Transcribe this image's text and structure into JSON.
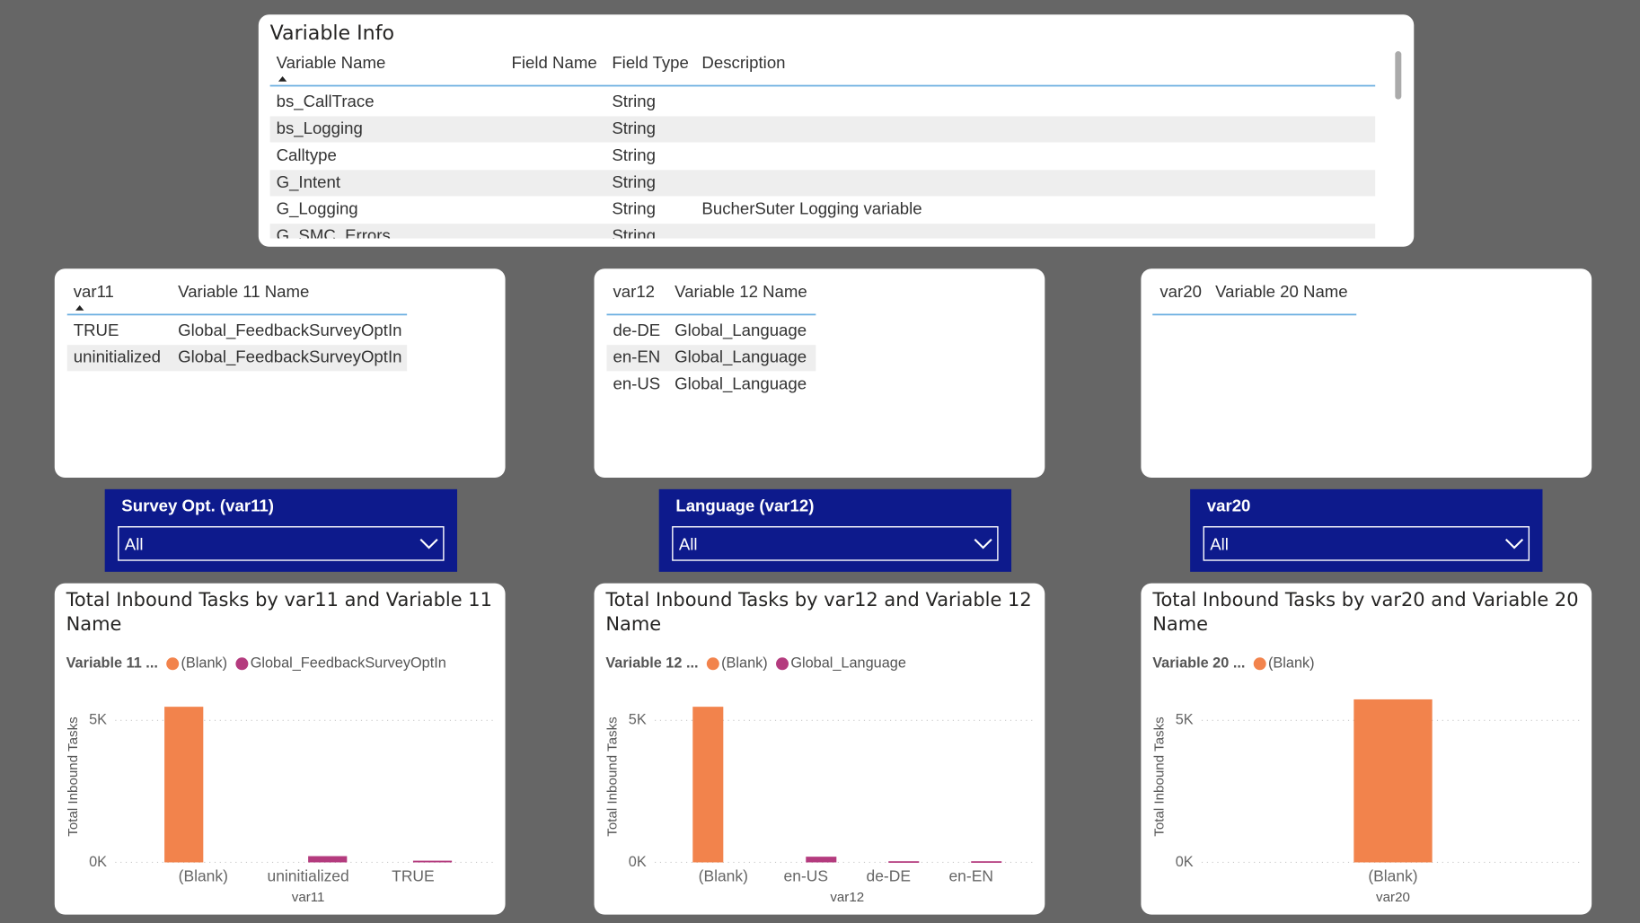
{
  "variable_info": {
    "title": "Variable Info",
    "columns": [
      "Variable Name",
      "Field Name",
      "Field Type",
      "Description"
    ],
    "rows": [
      [
        "bs_CallTrace",
        null,
        "String",
        null
      ],
      [
        "bs_Logging",
        null,
        "String",
        null
      ],
      [
        "Calltype",
        null,
        "String",
        null
      ],
      [
        "G_Intent",
        null,
        "String",
        null
      ],
      [
        "G_Logging",
        null,
        "String",
        "BucherSuter Logging variable"
      ],
      [
        "G_SMC_Errors",
        null,
        "String",
        null
      ]
    ]
  },
  "tables": [
    {
      "columns": [
        "var11",
        "Variable 11 Name"
      ],
      "rows": [
        [
          "TRUE",
          "Global_FeedbackSurveyOptIn"
        ],
        [
          "uninitialized",
          "Global_FeedbackSurveyOptIn"
        ]
      ]
    },
    {
      "columns": [
        "var12",
        "Variable 12 Name"
      ],
      "rows": [
        [
          "de-DE",
          "Global_Language"
        ],
        [
          "en-EN",
          "Global_Language"
        ],
        [
          "en-US",
          "Global_Language"
        ]
      ]
    },
    {
      "columns": [
        "var20",
        "Variable 20 Name"
      ],
      "rows": []
    }
  ],
  "slicers": [
    {
      "title": "Survey Opt. (var11)",
      "value": "All"
    },
    {
      "title": "Language (var12)",
      "value": "All"
    },
    {
      "title": "var20",
      "value": "All"
    }
  ],
  "chart_data": [
    {
      "type": "bar",
      "title": "Total Inbound Tasks by var11 and Variable 11 Name",
      "legend_title": "Variable 11 ...",
      "x_label": "var11",
      "y_label": "Total Inbound Tasks",
      "categories": [
        "(Blank)",
        "uninitialized",
        "TRUE"
      ],
      "series": [
        {
          "name": "(Blank)",
          "color": "#f2834c",
          "values": [
            5480,
            null,
            null
          ]
        },
        {
          "name": "Global_FeedbackSurveyOptIn",
          "color": "#b43b7e",
          "values": [
            null,
            220,
            60
          ]
        }
      ],
      "ylim": [
        0,
        6000
      ],
      "yticks": [
        {
          "value": 0,
          "label": "0K"
        },
        {
          "value": 5000,
          "label": "5K"
        }
      ],
      "grid": true
    },
    {
      "type": "bar",
      "title": "Total Inbound Tasks by var12 and Variable 12 Name",
      "legend_title": "Variable 12 ...",
      "x_label": "var12",
      "y_label": "Total Inbound Tasks",
      "categories": [
        "(Blank)",
        "en-US",
        "de-DE",
        "en-EN"
      ],
      "series": [
        {
          "name": "(Blank)",
          "color": "#f2834c",
          "values": [
            5480,
            null,
            null,
            null
          ]
        },
        {
          "name": "Global_Language",
          "color": "#b43b7e",
          "values": [
            null,
            200,
            40,
            40
          ]
        }
      ],
      "ylim": [
        0,
        6000
      ],
      "yticks": [
        {
          "value": 0,
          "label": "0K"
        },
        {
          "value": 5000,
          "label": "5K"
        }
      ],
      "grid": true
    },
    {
      "type": "bar",
      "title": "Total Inbound Tasks by var20 and Variable 20 Name",
      "legend_title": "Variable 20 ...",
      "x_label": "var20",
      "y_label": "Total Inbound Tasks",
      "categories": [
        "(Blank)"
      ],
      "series": [
        {
          "name": "(Blank)",
          "color": "#f2834c",
          "values": [
            5740
          ]
        }
      ],
      "ylim": [
        0,
        6000
      ],
      "yticks": [
        {
          "value": 0,
          "label": "0K"
        },
        {
          "value": 5000,
          "label": "5K"
        }
      ],
      "grid": true
    }
  ]
}
